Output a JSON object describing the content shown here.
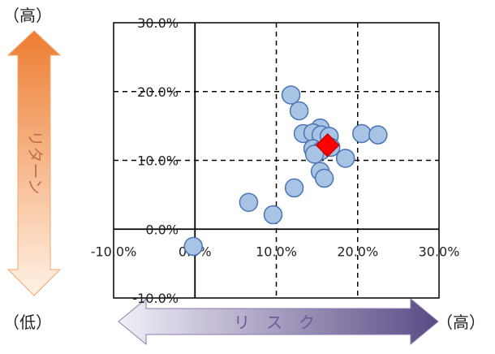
{
  "labels": {
    "y_high": "（高）",
    "y_low": "（低）",
    "x_high": "（高）",
    "y_arrow_text": "リターン",
    "x_arrow_text": "リ　ス　ク"
  },
  "colors": {
    "point_fill": "#a8c4e4",
    "point_stroke": "#4a74b4",
    "highlight_fill": "#ff0000",
    "highlight_stroke": "#c00000",
    "y_arrow_top": "#ed7d31",
    "y_arrow_bottom": "#fff2e6",
    "x_arrow_left": "#f2eff8",
    "x_arrow_right": "#5a4a85"
  },
  "chart_data": {
    "type": "scatter",
    "xlim": [
      -10,
      30
    ],
    "ylim": [
      -10,
      30
    ],
    "x_ticks": [
      -10,
      0,
      10,
      20,
      30
    ],
    "y_ticks": [
      -10,
      0,
      10,
      20,
      30
    ],
    "x_tick_labels": [
      "-10.0%",
      "0.0%",
      "10.0%",
      "20.0%",
      "30.0%"
    ],
    "y_tick_labels": [
      "-10.0%",
      "0.0%",
      "10.0%",
      "20.0%",
      "30.0%"
    ],
    "grid": true,
    "points": [
      {
        "x": 11.8,
        "y": 19.5
      },
      {
        "x": 12.8,
        "y": 17.2
      },
      {
        "x": 15.4,
        "y": 14.7
      },
      {
        "x": 13.3,
        "y": 13.9
      },
      {
        "x": 14.5,
        "y": 14.0
      },
      {
        "x": 15.5,
        "y": 13.7
      },
      {
        "x": 16.5,
        "y": 13.5
      },
      {
        "x": 20.5,
        "y": 13.9
      },
      {
        "x": 22.5,
        "y": 13.7
      },
      {
        "x": 14.5,
        "y": 11.7
      },
      {
        "x": 15.5,
        "y": 11.4
      },
      {
        "x": 14.7,
        "y": 10.9
      },
      {
        "x": 16.7,
        "y": 11.9
      },
      {
        "x": 18.5,
        "y": 10.3
      },
      {
        "x": 15.4,
        "y": 8.4
      },
      {
        "x": 15.9,
        "y": 7.4
      },
      {
        "x": 12.2,
        "y": 6.0
      },
      {
        "x": 6.6,
        "y": 3.9
      },
      {
        "x": 9.6,
        "y": 2.1
      },
      {
        "x": -0.2,
        "y": -2.5
      }
    ],
    "highlight": {
      "x": 16.3,
      "y": 12.2,
      "marker": "diamond"
    }
  }
}
